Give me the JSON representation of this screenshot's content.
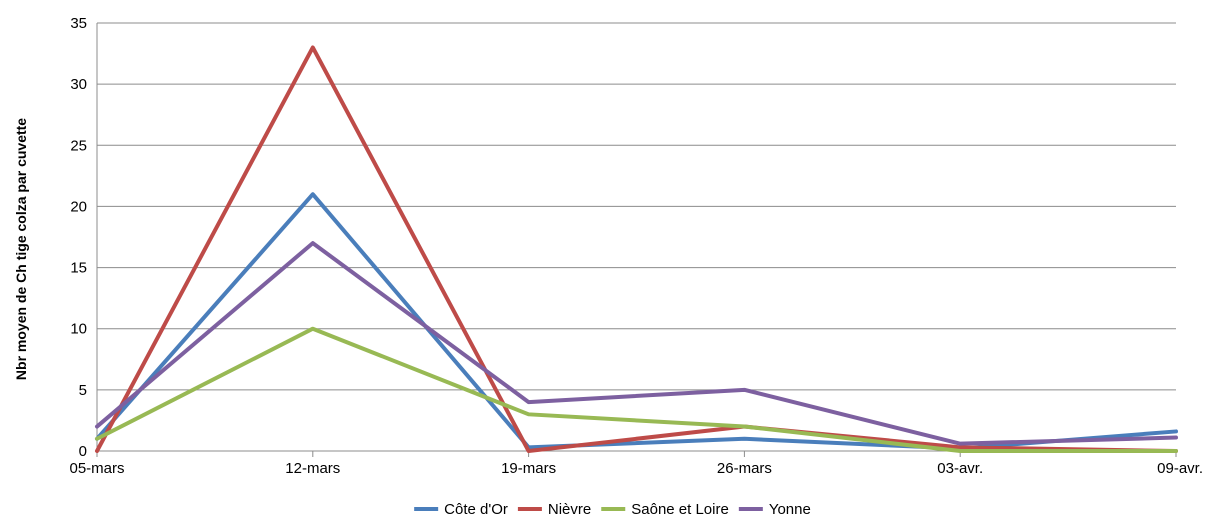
{
  "chart_data": {
    "type": "line",
    "ylabel": "Nbr moyen de Ch tige colza par cuvette",
    "ylim": [
      0,
      35
    ],
    "yticks": [
      0,
      5,
      10,
      15,
      20,
      25,
      30,
      35
    ],
    "categories": [
      "05-mars",
      "12-mars",
      "19-mars",
      "26-mars",
      "03-avr.",
      "09-avr."
    ],
    "grid": true,
    "legend_position": "bottom",
    "series": [
      {
        "name": "Côte d'Or",
        "color": "#4a7ebb",
        "values": [
          1,
          21,
          0.3,
          1,
          0.2,
          1.6
        ]
      },
      {
        "name": "Nièvre",
        "color": "#be4b48",
        "values": [
          0,
          33,
          0,
          2,
          0.3,
          0
        ]
      },
      {
        "name": "Saône et Loire",
        "color": "#98b954",
        "values": [
          1,
          10,
          3,
          2,
          0,
          0
        ]
      },
      {
        "name": "Yonne",
        "color": "#7d60a0",
        "values": [
          2,
          17,
          4,
          5,
          0.6,
          1.1
        ]
      }
    ]
  }
}
